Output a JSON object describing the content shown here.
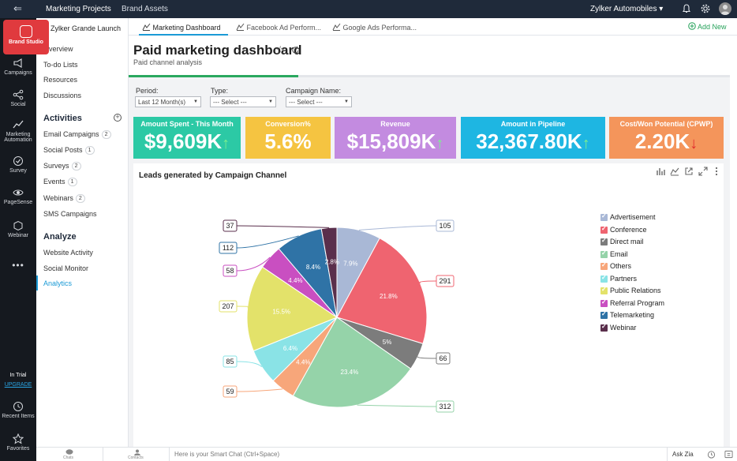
{
  "topbar": {
    "tabs": [
      "Marketing Projects",
      "Brand Assets"
    ],
    "org": "Zylker Automobiles"
  },
  "rail": {
    "brand": "Brand Studio",
    "items": [
      "Campaigns",
      "Social",
      "Marketing Automation",
      "Survey",
      "PageSense",
      "Webinar"
    ],
    "trial": "In Trial",
    "upgrade": "UPGRADE",
    "recent": "Recent Items",
    "favorites": "Favorites"
  },
  "sidebar": {
    "project": "Zylker Grande Launch",
    "top_items": [
      "Overview",
      "To-do Lists",
      "Resources",
      "Discussions"
    ],
    "activities_title": "Activities",
    "activities": [
      {
        "label": "Email Campaigns",
        "count": "2"
      },
      {
        "label": "Social Posts",
        "count": "1"
      },
      {
        "label": "Surveys",
        "count": "2"
      },
      {
        "label": "Events",
        "count": "1"
      },
      {
        "label": "Webinars",
        "count": "2"
      },
      {
        "label": "SMS Campaigns",
        "count": ""
      }
    ],
    "analyze_title": "Analyze",
    "analyze": [
      "Website Activity",
      "Social Monitor",
      "Analytics"
    ]
  },
  "tabs": {
    "items": [
      "Marketing Dashboard",
      "Facebook Ad Perform...",
      "Google Ads Performa..."
    ],
    "add_new": "Add New"
  },
  "dashboard": {
    "title": "Paid marketing dashboard",
    "subtitle": "Paid channel analysis",
    "filters": [
      {
        "label": "Period:",
        "value": "Last 12 Month(s)"
      },
      {
        "label": "Type:",
        "value": "--- Select ---"
      },
      {
        "label": "Campaign Name:",
        "value": "--- Select ---"
      }
    ],
    "kpis": [
      {
        "label": "Amount Spent - This Month",
        "value": "$9,609K",
        "trend": "↑",
        "color": "#2cc9a5"
      },
      {
        "label": "Conversion%",
        "value": "5.6%",
        "trend": "",
        "color": "#f5c441"
      },
      {
        "label": "Revenue",
        "value": "$15,809K",
        "trend": "↑",
        "color": "#c38be0"
      },
      {
        "label": "Amount in Pipeline",
        "value": "32,367.80K",
        "trend": "↑",
        "color": "#1eb6e2"
      },
      {
        "label": "Cost/Won Potential (CPWP)",
        "value": "2.20K",
        "trend": "↓",
        "color": "#f4955b"
      }
    ]
  },
  "bottom": {
    "chats": "Chats",
    "contacts": "Contacts",
    "placeholder": "Here is your Smart Chat (Ctrl+Space)",
    "ask_zia": "Ask Zia"
  },
  "chart_data": {
    "type": "pie",
    "title": "Leads generated by Campaign Channel",
    "legend_position": "right",
    "slices": [
      {
        "name": "Advertisement",
        "value": 105,
        "percent": "7.9%",
        "color": "#a9b8d6"
      },
      {
        "name": "Conference",
        "value": 291,
        "percent": "21.8%",
        "color": "#ef6470"
      },
      {
        "name": "Direct mail",
        "value": 66,
        "percent": "5%",
        "color": "#7c7c7c"
      },
      {
        "name": "Email",
        "value": 312,
        "percent": "23.4%",
        "color": "#95d3a9"
      },
      {
        "name": "Others",
        "value": 59,
        "percent": "4.4%",
        "color": "#f7a67a"
      },
      {
        "name": "Partners",
        "value": 85,
        "percent": "6.4%",
        "color": "#8ae3e6"
      },
      {
        "name": "Public Relations",
        "value": 207,
        "percent": "15.5%",
        "color": "#e3e26a"
      },
      {
        "name": "Referral Program",
        "value": 58,
        "percent": "4.4%",
        "color": "#c94fc1"
      },
      {
        "name": "Telemarketing",
        "value": 112,
        "percent": "8.4%",
        "color": "#2f73a6"
      },
      {
        "name": "Webinar",
        "value": 37,
        "percent": "2.8%",
        "color": "#5a2f4c"
      }
    ]
  }
}
